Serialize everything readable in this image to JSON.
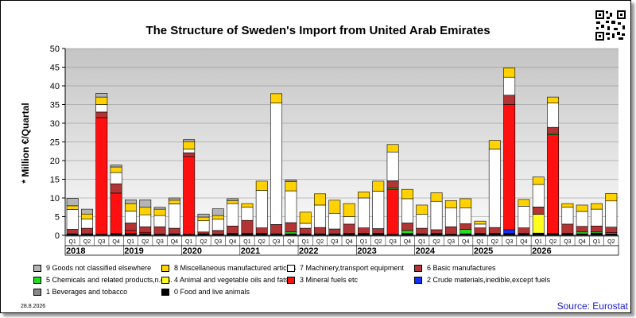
{
  "title": "The Structure of Sweden's Import from United Arab Emirates",
  "ylabel": "* Million €/Quartal",
  "date_stamp": "28.8.2026",
  "source": "Source: Eurostat",
  "colors": {
    "c9": "#b4b4b4",
    "c8": "#ffd200",
    "c7": "#ffffff",
    "c6": "#b23434",
    "c5": "#22dd22",
    "c4": "#ffff22",
    "c3": "#ff1010",
    "c2": "#1030ff",
    "c1": "#888888",
    "c0": "#000000"
  },
  "legend": [
    {
      "key": "c9",
      "label": "9 Goods not classified elsewhere"
    },
    {
      "key": "c8",
      "label": "8 Miscellaneous manufactured articles"
    },
    {
      "key": "c7",
      "label": "7 Machinery,transport equipment"
    },
    {
      "key": "c6",
      "label": "6 Basic manufactures"
    },
    {
      "key": "c5",
      "label": "5 Chemicals and related products,n.e.s."
    },
    {
      "key": "c4",
      "label": "4 Animal and vegetable oils and fats"
    },
    {
      "key": "c3",
      "label": "3 Mineral fuels etc"
    },
    {
      "key": "c2",
      "label": "2 Crude materials,inedible,except fuels"
    },
    {
      "key": "c1",
      "label": "1 Beverages and tobacco"
    },
    {
      "key": "c0",
      "label": "0 Food and live animals"
    }
  ],
  "chart_data": {
    "type": "bar",
    "stacked": true,
    "ylim": [
      0,
      50
    ],
    "yticks": [
      0,
      5,
      10,
      15,
      20,
      25,
      30,
      35,
      40,
      45,
      50
    ],
    "grid": true,
    "categories": [
      "Q1",
      "Q2",
      "Q3",
      "Q4",
      "Q1",
      "Q2",
      "Q3",
      "Q4",
      "Q1",
      "Q2",
      "Q3",
      "Q4",
      "Q1",
      "Q2",
      "Q3",
      "Q4",
      "Q1",
      "Q2",
      "Q3",
      "Q4",
      "Q1",
      "Q2",
      "Q3",
      "Q4",
      "Q1",
      "Q2",
      "Q3",
      "Q4",
      "Q1",
      "Q2",
      "Q3",
      "Q4",
      "Q1",
      "Q2",
      "Q3",
      "Q4",
      "Q1",
      "Q2"
    ],
    "years": [
      "2018",
      "2019",
      "2020",
      "2021",
      "2022",
      "2023",
      "2024",
      "2025",
      "2026"
    ],
    "series": [
      {
        "key": "c0",
        "name": "0 Food and live animals",
        "values": [
          0.4,
          0.4,
          0.3,
          0.5,
          0.5,
          0.4,
          0.3,
          0.4,
          0.3,
          0.4,
          0.3,
          0.5,
          0.5,
          0.5,
          0.4,
          0.4,
          0.4,
          0.4,
          0.4,
          0.5,
          0.5,
          0.5,
          0.3,
          0.5,
          0.4,
          0.5,
          0.3,
          0.4,
          0.5,
          0.5,
          0.5,
          0.5,
          0.6,
          0.5,
          0.5,
          0.4,
          0.6,
          0.4
        ]
      },
      {
        "key": "c1",
        "name": "1 Beverages and tobacco",
        "values": [
          0,
          0,
          0,
          0,
          0,
          0,
          0,
          0,
          0,
          0,
          0,
          0,
          0,
          0,
          0,
          0,
          0,
          0,
          0,
          0,
          0,
          0,
          0,
          0,
          0,
          0,
          0,
          0,
          0,
          0,
          0,
          0,
          0,
          0,
          0,
          0,
          0,
          0
        ]
      },
      {
        "key": "c2",
        "name": "2 Crude materials,inedible,except fuels",
        "values": [
          0,
          0,
          0,
          0,
          0,
          0,
          0,
          0,
          0,
          0,
          0,
          0,
          0,
          0,
          0,
          0,
          0,
          0,
          0,
          0,
          0,
          0,
          0,
          0,
          0,
          0,
          0,
          0,
          0,
          0,
          1.0,
          0,
          0,
          0,
          0,
          0,
          0,
          0
        ]
      },
      {
        "key": "c3",
        "name": "3 Mineral fuels etc",
        "values": [
          0,
          0,
          31.2,
          10.8,
          0.8,
          0.4,
          0,
          0,
          20.8,
          0,
          0,
          0,
          0,
          0,
          0,
          0,
          0,
          0,
          0,
          0,
          0,
          0,
          12.0,
          0,
          0,
          0,
          0,
          0,
          0,
          0,
          33.5,
          0,
          0,
          26.4,
          0,
          0,
          0,
          0
        ]
      },
      {
        "key": "c4",
        "name": "4 Animal and vegetable oils and fats",
        "values": [
          0,
          0,
          0,
          0,
          0,
          0,
          0,
          0,
          0,
          0,
          0,
          0,
          0,
          0,
          0,
          0,
          0,
          0,
          0,
          0,
          0,
          0,
          0,
          0,
          0,
          0,
          0,
          0,
          0,
          0,
          0,
          0,
          5.0,
          0,
          0,
          0,
          0,
          0
        ]
      },
      {
        "key": "c5",
        "name": "5 Chemicals and related products,n.e.s.",
        "values": [
          0,
          0,
          0,
          0,
          0,
          0,
          0,
          0,
          0,
          0,
          0,
          0,
          0,
          0,
          0,
          0.5,
          0,
          0,
          0,
          0,
          0,
          0,
          0.3,
          0.8,
          0,
          0,
          0,
          1.2,
          0,
          0,
          0,
          0,
          0,
          0.3,
          0,
          0.5,
          0.3,
          0.3
        ]
      },
      {
        "key": "c6",
        "name": "6 Basic manufactures",
        "values": [
          1.2,
          1.5,
          1.5,
          2.5,
          2.0,
          1.5,
          2.0,
          1.5,
          1.0,
          0.5,
          1.0,
          2.0,
          3.5,
          1.5,
          2.5,
          2.5,
          1.5,
          1.7,
          1.3,
          2.5,
          1.5,
          1.3,
          2.0,
          2.0,
          1.5,
          1.0,
          2.0,
          1.5,
          1.5,
          1.6,
          2.5,
          1.5,
          2.0,
          1.7,
          2.5,
          1.5,
          1.6,
          1.5
        ]
      },
      {
        "key": "c7",
        "name": "7 Machinery,transport equipment",
        "values": [
          5.3,
          2.5,
          2.0,
          3.0,
          3.2,
          3.2,
          3.0,
          6.5,
          1.0,
          3.0,
          3.0,
          6.0,
          3.5,
          10.0,
          32.5,
          8.5,
          1.3,
          6.0,
          4.2,
          2.0,
          8.0,
          10.0,
          7.7,
          6.5,
          3.7,
          7.6,
          5.0,
          4.2,
          1.0,
          21.0,
          4.8,
          5.8,
          6.0,
          6.5,
          4.5,
          4.0,
          4.5,
          7.0
        ]
      },
      {
        "key": "c8",
        "name": "8 Miscellaneous manufactured articles",
        "values": [
          1.0,
          1.3,
          2.0,
          1.5,
          2.0,
          2.0,
          1.7,
          1.0,
          2.0,
          1.0,
          1.0,
          0.8,
          1.0,
          2.5,
          2.5,
          2.5,
          3.0,
          3.0,
          3.5,
          3.5,
          1.6,
          2.7,
          2.0,
          2.5,
          2.5,
          2.3,
          2.0,
          2.5,
          0.8,
          2.3,
          2.5,
          1.8,
          2.0,
          1.6,
          1.0,
          1.7,
          1.5,
          2.0
        ]
      },
      {
        "key": "c9",
        "name": "9 Goods not classified elsewhere",
        "values": [
          2.0,
          1.3,
          1.0,
          0.5,
          1.0,
          2.0,
          0.5,
          0.6,
          0.5,
          0.8,
          1.8,
          0.5,
          0,
          0,
          0,
          0.4,
          0,
          0,
          0,
          0,
          0,
          0,
          0,
          0,
          0,
          0,
          0,
          0,
          0,
          0,
          0,
          0,
          0,
          0,
          0,
          0,
          0,
          0
        ]
      }
    ]
  }
}
